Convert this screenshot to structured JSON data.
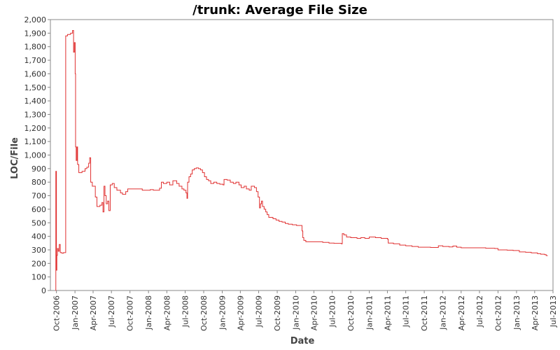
{
  "chart_data": {
    "type": "line",
    "title": "/trunk: Average File Size",
    "xlabel": "Date",
    "ylabel": "LOC/File",
    "xlim": [
      "2006-09-01",
      "2013-07-01"
    ],
    "ylim": [
      0,
      2000
    ],
    "x_tick_labels": [
      "Oct-2006",
      "Jan-2007",
      "Apr-2007",
      "Jul-2007",
      "Oct-2007",
      "Jan-2008",
      "Apr-2008",
      "Jul-2008",
      "Oct-2008",
      "Jan-2009",
      "Apr-2009",
      "Jul-2009",
      "Oct-2009",
      "Jan-2010",
      "Apr-2010",
      "Jul-2010",
      "Oct-2010",
      "Jan-2011",
      "Apr-2011",
      "Jul-2011",
      "Oct-2011",
      "Jan-2012",
      "Apr-2012",
      "Jul-2012",
      "Oct-2012",
      "Jan-2013",
      "Apr-2013",
      "Jul-2013"
    ],
    "y_tick_labels": [
      "0",
      "100",
      "200",
      "300",
      "400",
      "500",
      "600",
      "700",
      "800",
      "900",
      "1,000",
      "1,100",
      "1,200",
      "1,300",
      "1,400",
      "1,500",
      "1,600",
      "1,700",
      "1,800",
      "1,900",
      "2,000"
    ],
    "grid": false,
    "colors": {
      "series": "#e03030",
      "axis": "#888888",
      "plot_border": "#888888"
    },
    "series": [
      {
        "step": true,
        "points": [
          [
            "2006-09-27",
            0
          ],
          [
            "2006-09-28",
            880
          ],
          [
            "2006-10-01",
            150
          ],
          [
            "2006-10-03",
            260
          ],
          [
            "2006-10-06",
            310
          ],
          [
            "2006-10-10",
            290
          ],
          [
            "2006-10-15",
            340
          ],
          [
            "2006-10-20",
            280
          ],
          [
            "2006-10-28",
            275
          ],
          [
            "2006-11-05",
            280
          ],
          [
            "2006-11-12",
            280
          ],
          [
            "2006-11-16",
            1880
          ],
          [
            "2006-11-25",
            1890
          ],
          [
            "2006-12-10",
            1900
          ],
          [
            "2006-12-20",
            1920
          ],
          [
            "2006-12-25",
            1760
          ],
          [
            "2006-12-29",
            1830
          ],
          [
            "2007-01-02",
            1600
          ],
          [
            "2007-01-04",
            1060
          ],
          [
            "2007-01-07",
            960
          ],
          [
            "2007-01-11",
            1060
          ],
          [
            "2007-01-14",
            930
          ],
          [
            "2007-01-20",
            870
          ],
          [
            "2007-02-05",
            880
          ],
          [
            "2007-02-20",
            900
          ],
          [
            "2007-03-01",
            910
          ],
          [
            "2007-03-10",
            940
          ],
          [
            "2007-03-15",
            980
          ],
          [
            "2007-03-20",
            800
          ],
          [
            "2007-03-28",
            770
          ],
          [
            "2007-04-05",
            770
          ],
          [
            "2007-04-12",
            690
          ],
          [
            "2007-04-20",
            620
          ],
          [
            "2007-05-05",
            630
          ],
          [
            "2007-05-15",
            650
          ],
          [
            "2007-05-20",
            580
          ],
          [
            "2007-05-25",
            770
          ],
          [
            "2007-05-30",
            700
          ],
          [
            "2007-06-05",
            640
          ],
          [
            "2007-06-12",
            660
          ],
          [
            "2007-06-18",
            590
          ],
          [
            "2007-06-25",
            780
          ],
          [
            "2007-07-05",
            790
          ],
          [
            "2007-07-15",
            760
          ],
          [
            "2007-07-28",
            740
          ],
          [
            "2007-08-15",
            720
          ],
          [
            "2007-08-25",
            710
          ],
          [
            "2007-09-10",
            730
          ],
          [
            "2007-09-20",
            750
          ],
          [
            "2007-10-05",
            750
          ],
          [
            "2007-11-15",
            750
          ],
          [
            "2007-12-01",
            740
          ],
          [
            "2007-12-20",
            740
          ],
          [
            "2008-01-10",
            745
          ],
          [
            "2008-01-25",
            740
          ],
          [
            "2008-02-10",
            740
          ],
          [
            "2008-02-25",
            755
          ],
          [
            "2008-03-05",
            800
          ],
          [
            "2008-03-15",
            790
          ],
          [
            "2008-04-01",
            800
          ],
          [
            "2008-04-15",
            780
          ],
          [
            "2008-05-01",
            810
          ],
          [
            "2008-05-20",
            790
          ],
          [
            "2008-06-01",
            770
          ],
          [
            "2008-06-15",
            750
          ],
          [
            "2008-06-25",
            740
          ],
          [
            "2008-07-05",
            720
          ],
          [
            "2008-07-10",
            680
          ],
          [
            "2008-07-13",
            800
          ],
          [
            "2008-07-20",
            840
          ],
          [
            "2008-07-28",
            860
          ],
          [
            "2008-08-05",
            890
          ],
          [
            "2008-08-15",
            900
          ],
          [
            "2008-08-25",
            905
          ],
          [
            "2008-09-05",
            900
          ],
          [
            "2008-09-15",
            890
          ],
          [
            "2008-09-25",
            870
          ],
          [
            "2008-10-05",
            840
          ],
          [
            "2008-10-15",
            820
          ],
          [
            "2008-10-25",
            810
          ],
          [
            "2008-11-05",
            790
          ],
          [
            "2008-11-20",
            800
          ],
          [
            "2008-12-05",
            790
          ],
          [
            "2008-12-20",
            785
          ],
          [
            "2009-01-05",
            780
          ],
          [
            "2009-01-10",
            820
          ],
          [
            "2009-01-25",
            815
          ],
          [
            "2009-02-10",
            800
          ],
          [
            "2009-02-25",
            790
          ],
          [
            "2009-03-10",
            800
          ],
          [
            "2009-03-25",
            780
          ],
          [
            "2009-04-05",
            760
          ],
          [
            "2009-04-20",
            770
          ],
          [
            "2009-05-01",
            750
          ],
          [
            "2009-05-15",
            740
          ],
          [
            "2009-05-25",
            770
          ],
          [
            "2009-06-10",
            760
          ],
          [
            "2009-06-20",
            730
          ],
          [
            "2009-06-28",
            690
          ],
          [
            "2009-07-05",
            610
          ],
          [
            "2009-07-10",
            640
          ],
          [
            "2009-07-15",
            660
          ],
          [
            "2009-07-20",
            620
          ],
          [
            "2009-07-28",
            600
          ],
          [
            "2009-08-05",
            580
          ],
          [
            "2009-08-12",
            560
          ],
          [
            "2009-08-20",
            540
          ],
          [
            "2009-09-01",
            540
          ],
          [
            "2009-09-10",
            530
          ],
          [
            "2009-09-25",
            520
          ],
          [
            "2009-10-10",
            510
          ],
          [
            "2009-10-25",
            505
          ],
          [
            "2009-11-10",
            495
          ],
          [
            "2009-11-25",
            490
          ],
          [
            "2009-12-15",
            485
          ],
          [
            "2010-01-05",
            480
          ],
          [
            "2010-01-20",
            480
          ],
          [
            "2010-02-01",
            440
          ],
          [
            "2010-02-05",
            390
          ],
          [
            "2010-02-10",
            370
          ],
          [
            "2010-02-20",
            360
          ],
          [
            "2010-04-10",
            360
          ],
          [
            "2010-05-15",
            355
          ],
          [
            "2010-06-15",
            350
          ],
          [
            "2010-07-10",
            348
          ],
          [
            "2010-08-15",
            345
          ],
          [
            "2010-08-20",
            420
          ],
          [
            "2010-08-28",
            410
          ],
          [
            "2010-09-10",
            395
          ],
          [
            "2010-10-01",
            390
          ],
          [
            "2010-11-01",
            385
          ],
          [
            "2010-11-20",
            390
          ],
          [
            "2010-12-10",
            385
          ],
          [
            "2011-01-01",
            395
          ],
          [
            "2011-02-01",
            390
          ],
          [
            "2011-03-01",
            385
          ],
          [
            "2011-04-01",
            380
          ],
          [
            "2011-04-05",
            350
          ],
          [
            "2011-05-01",
            345
          ],
          [
            "2011-06-01",
            335
          ],
          [
            "2011-07-01",
            330
          ],
          [
            "2011-08-01",
            325
          ],
          [
            "2011-09-01",
            320
          ],
          [
            "2011-10-01",
            320
          ],
          [
            "2011-11-01",
            318
          ],
          [
            "2011-12-10",
            330
          ],
          [
            "2012-01-01",
            325
          ],
          [
            "2012-02-01",
            322
          ],
          [
            "2012-02-20",
            328
          ],
          [
            "2012-03-10",
            320
          ],
          [
            "2012-04-01",
            315
          ],
          [
            "2012-06-01",
            315
          ],
          [
            "2012-08-01",
            312
          ],
          [
            "2012-09-15",
            310
          ],
          [
            "2012-10-01",
            300
          ],
          [
            "2012-11-15",
            298
          ],
          [
            "2012-12-15",
            295
          ],
          [
            "2013-01-15",
            285
          ],
          [
            "2013-02-15",
            282
          ],
          [
            "2013-03-15",
            278
          ],
          [
            "2013-04-15",
            272
          ],
          [
            "2013-05-01",
            268
          ],
          [
            "2013-05-20",
            265
          ],
          [
            "2013-05-28",
            258
          ],
          [
            "2013-06-05",
            258
          ]
        ]
      }
    ]
  }
}
